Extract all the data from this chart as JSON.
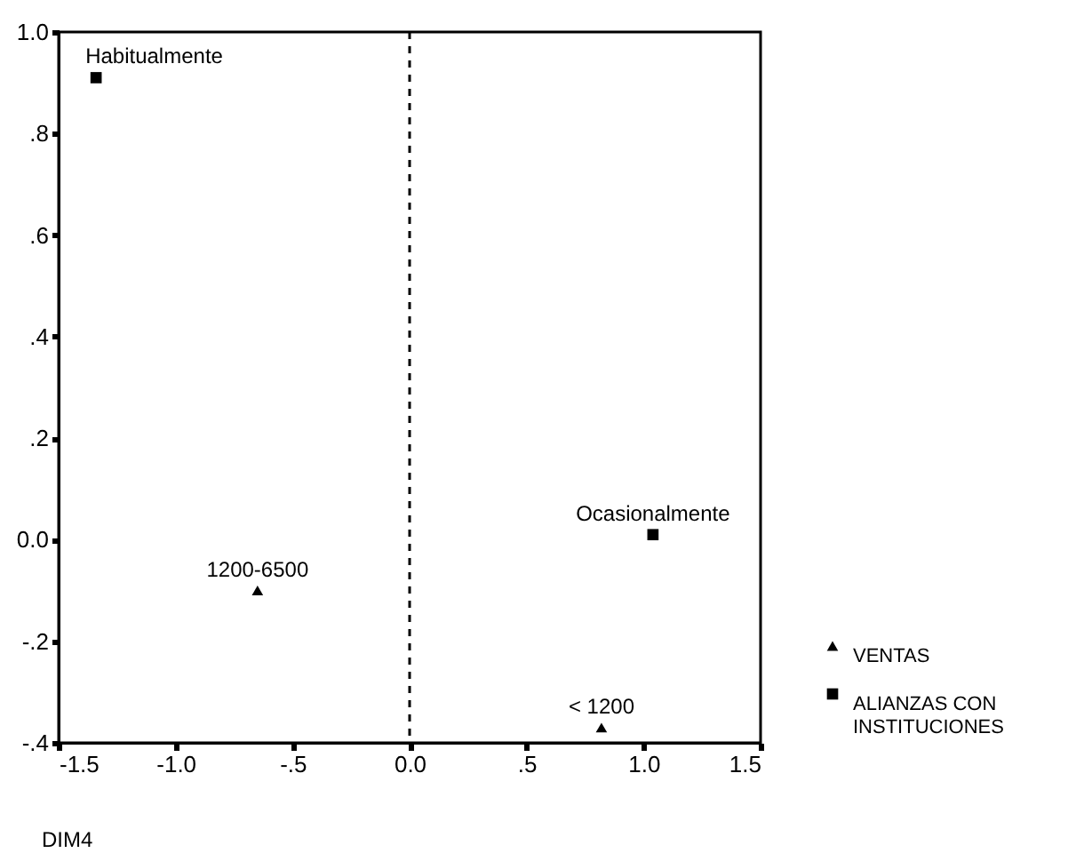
{
  "chart_data": {
    "type": "scatter",
    "xlabel": "DIM4",
    "series": [
      {
        "name": "VENTAS",
        "color": "#000000",
        "marker": "triangle",
        "x": [
          -0.65,
          0.82
        ],
        "values": [
          -0.1,
          -0.37
        ]
      },
      {
        "name": "ALIANZAS CON INSTITUCIONES",
        "color": "#000000",
        "marker": "square",
        "x": [
          -1.34,
          1.04
        ],
        "values": [
          0.91,
          0.01
        ]
      }
    ],
    "annotations": [
      {
        "text": "1200-6500",
        "x": -0.65,
        "y": -0.1
      },
      {
        "text": "< 1200",
        "x": 0.82,
        "y": -0.37
      },
      {
        "text": "Habitualmente",
        "x": -1.34,
        "y": 0.91
      },
      {
        "text": "Ocasionalmente",
        "x": 1.04,
        "y": 0.01
      }
    ],
    "xlim": [
      -1.5,
      1.5
    ],
    "ylim": [
      -0.4,
      1.0
    ],
    "xticks": [
      {
        "value": -1.5,
        "label": "-1.5"
      },
      {
        "value": -1,
        "label": "-1.0"
      },
      {
        "value": -0.5,
        "label": "-.5"
      },
      {
        "value": 0,
        "label": "0.0"
      },
      {
        "value": 0.5,
        "label": ".5"
      },
      {
        "value": 1,
        "label": "1.0"
      },
      {
        "value": 1.5,
        "label": "1.5"
      }
    ],
    "yticks": [
      {
        "value": -0.4,
        "label": "-.4"
      },
      {
        "value": -0.2,
        "label": "-.2"
      },
      {
        "value": 0,
        "label": "0.0"
      },
      {
        "value": 0.2,
        "label": ".2"
      },
      {
        "value": 0.4,
        "label": ".4"
      },
      {
        "value": 0.6,
        "label": ".6"
      },
      {
        "value": 0.8,
        "label": ".8"
      },
      {
        "value": 1,
        "label": "1.0"
      }
    ],
    "ref_lines": [
      {
        "axis": "x",
        "value": 0,
        "line_style": "dashed"
      }
    ],
    "grid": false,
    "legend": "bottom right"
  }
}
